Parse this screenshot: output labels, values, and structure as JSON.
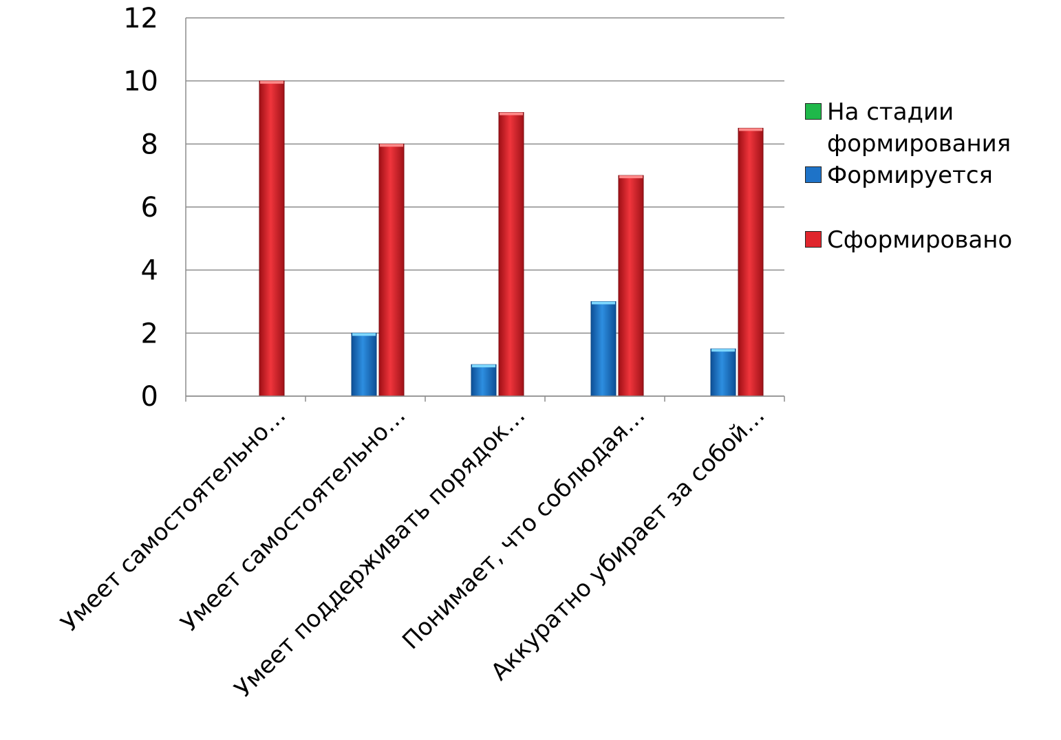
{
  "chart_data": {
    "type": "bar",
    "title": "",
    "xlabel": "",
    "ylabel": "",
    "ylim": [
      0,
      12
    ],
    "yticks": [
      0,
      2,
      4,
      6,
      8,
      10,
      12
    ],
    "grid": true,
    "legend_position": "right",
    "categories": [
      "Умеет самостоятельно…",
      "Умеет самостоятельно…",
      "Умеет поддерживать порядок…",
      "Понимает, что соблюдая…",
      "Аккуратно убирает за собой…"
    ],
    "series": [
      {
        "name": "На стадии формирования",
        "color": "#1fb84a",
        "values": [
          0,
          0,
          0,
          0,
          0
        ]
      },
      {
        "name": "Формируется",
        "color": "#1e73c8",
        "values": [
          0,
          2,
          1,
          3,
          1.5
        ]
      },
      {
        "name": "Сформировано",
        "color": "#e0262d",
        "values": [
          10,
          8,
          9,
          7,
          8.5
        ]
      }
    ]
  }
}
